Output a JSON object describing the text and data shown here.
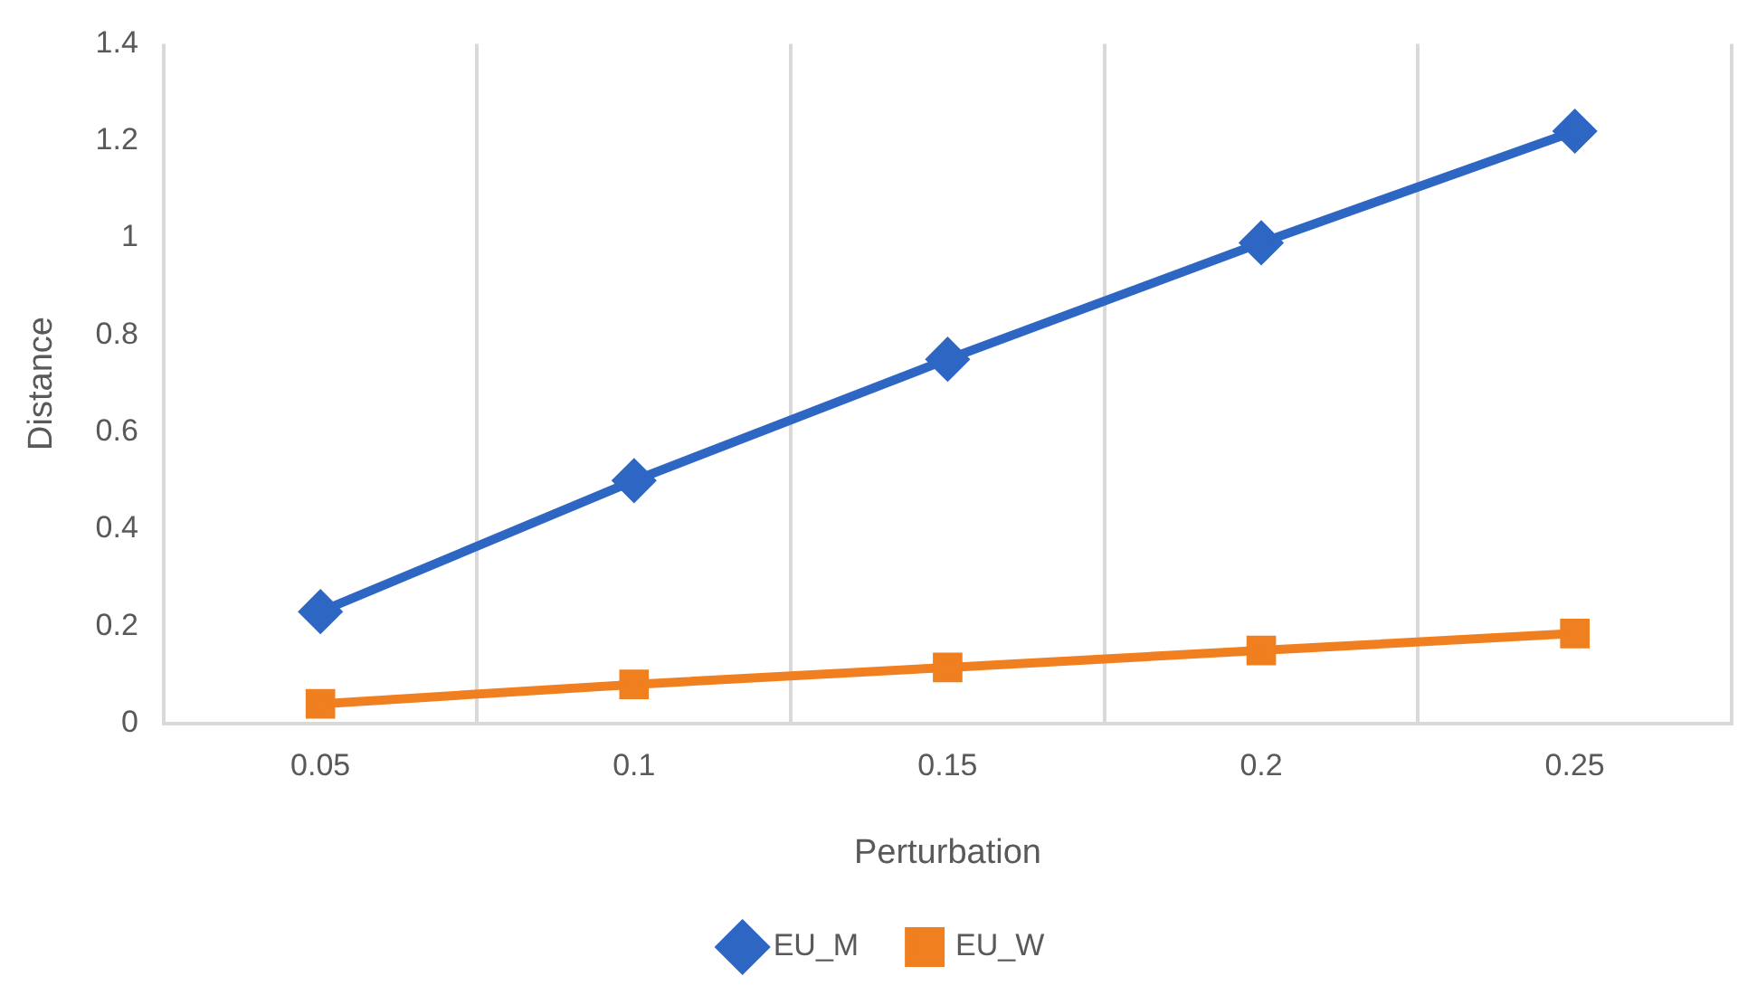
{
  "chart_data": {
    "type": "line",
    "xlabel": "Perturbation",
    "ylabel": "Distance",
    "categories": [
      "0.05",
      "0.1",
      "0.15",
      "0.2",
      "0.25"
    ],
    "series": [
      {
        "name": "EU_M",
        "color": "#2e66c4",
        "marker": "diamond",
        "values": [
          0.23,
          0.5,
          0.75,
          0.99,
          1.22
        ]
      },
      {
        "name": "EU_W",
        "color": "#f07f20",
        "marker": "square",
        "values": [
          0.04,
          0.08,
          0.115,
          0.15,
          0.185
        ]
      }
    ],
    "ylim": [
      0,
      1.4
    ],
    "yticks": [
      0,
      0.2,
      0.4,
      0.6,
      0.8,
      1,
      1.2,
      1.4
    ],
    "grid": "x",
    "legend": "bottom",
    "line_style": "solid"
  }
}
